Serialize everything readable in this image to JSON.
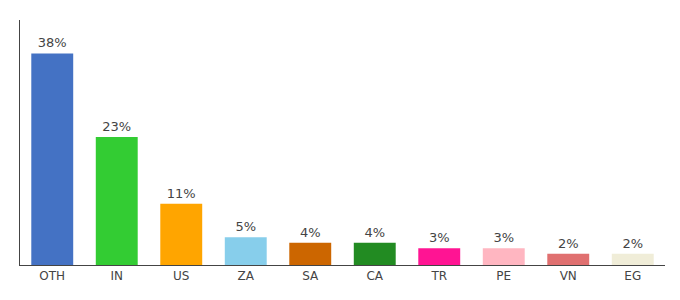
{
  "chart_data": {
    "type": "bar",
    "categories": [
      "OTH",
      "IN",
      "US",
      "ZA",
      "SA",
      "CA",
      "TR",
      "PE",
      "VN",
      "EG"
    ],
    "values": [
      38,
      23,
      11,
      5,
      4,
      4,
      3,
      3,
      2,
      2
    ],
    "value_labels": [
      "38%",
      "23%",
      "11%",
      "5%",
      "4%",
      "4%",
      "3%",
      "3%",
      "2%",
      "2%"
    ],
    "colors": [
      "#4472C4",
      "#33CC33",
      "#FFA500",
      "#87CEEB",
      "#CC6600",
      "#228B22",
      "#FF1493",
      "#FFB6C1",
      "#E07070",
      "#F0EDD8"
    ],
    "ylim": [
      0,
      44
    ],
    "data_labels": true,
    "tick_labels": "x",
    "grid": false
  }
}
